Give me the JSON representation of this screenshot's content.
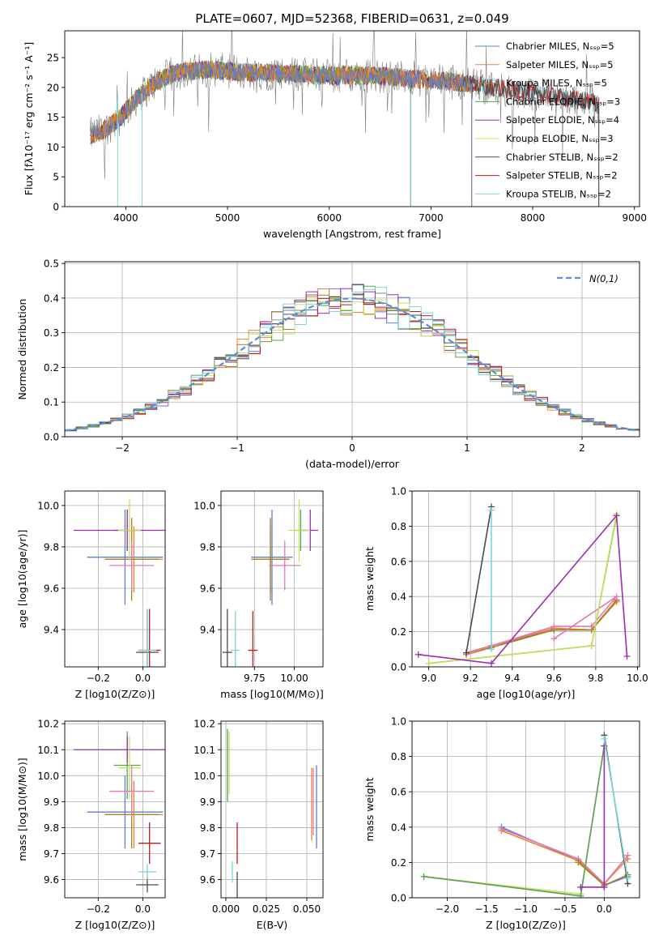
{
  "colors": [
    "#5b7fd6",
    "#e8823a",
    "#a8801c",
    "#5aa05a",
    "#9a2db0",
    "#c8e05a",
    "#4a4a4a",
    "#b81c1c",
    "#7fd6d6",
    "#e07ab0"
  ],
  "figure_title": "PLATE=0607, MJD=52368, FIBERID=0631, z=0.049",
  "chart_data": [
    {
      "id": "spectrum",
      "type": "line",
      "title": "PLATE=0607, MJD=52368, FIBERID=0631, z=0.049",
      "xlabel": "wavelength [Angstrom, rest frame]",
      "ylabel": "Flux [fλ10⁻¹⁷ erg cm⁻² s⁻¹ A⁻¹]",
      "xlim": [
        3400,
        9050
      ],
      "ylim": [
        0,
        29.5
      ],
      "xticks": [
        4000,
        5000,
        6000,
        7000,
        8000,
        9000
      ],
      "yticks": [
        0,
        5,
        10,
        15,
        20,
        25
      ],
      "grid": false,
      "legend_position": "top-right",
      "data_color": "#7f7f7f",
      "data_profile": {
        "x": [
          3650,
          3800,
          3950,
          4100,
          4300,
          4500,
          4800,
          5200,
          5600,
          6000,
          6400,
          6800,
          7200,
          7600,
          8000,
          8400,
          8600,
          8650
        ],
        "y": [
          12,
          13,
          15,
          18,
          21,
          22.5,
          23,
          22.5,
          22.3,
          22,
          22,
          21.5,
          21,
          20,
          19,
          18,
          17.5,
          17
        ]
      },
      "series": [
        {
          "name": "Chabrier MILES, N_SSP=5",
          "color": "#5b7fd6",
          "x_range": [
            3650,
            7400
          ]
        },
        {
          "name": "Salpeter MILES, N_SSP=5",
          "color": "#e8823a",
          "x_range": [
            3650,
            7400
          ]
        },
        {
          "name": "Kroupa MILES, N_SSP=5",
          "color": "#a8801c",
          "x_range": [
            3650,
            7400
          ]
        },
        {
          "name": "Chabrier ELODIE, N_SSP=3",
          "color": "#5aa05a",
          "x_range": [
            3900,
            6800
          ]
        },
        {
          "name": "Salpeter ELODIE, N_SSP=4",
          "color": "#9a2db0",
          "x_range": [
            3900,
            6800
          ]
        },
        {
          "name": "Kroupa ELODIE, N_SSP=3",
          "color": "#c8e05a",
          "x_range": [
            3900,
            6800
          ]
        },
        {
          "name": "Chabrier STELIB, N_SSP=2",
          "color": "#4a4a4a",
          "x_range": [
            3650,
            8650
          ]
        },
        {
          "name": "Salpeter STELIB, N_SSP=2",
          "color": "#b81c1c",
          "x_range": [
            3650,
            8650
          ]
        },
        {
          "name": "Kroupa STELIB, N_SSP=2",
          "color": "#7fd6d6",
          "x_range": [
            3650,
            8650
          ]
        }
      ]
    },
    {
      "id": "residuals",
      "type": "histogram",
      "xlabel": "(data-model)/error",
      "ylabel": "Normed distribution",
      "xlim": [
        -2.5,
        2.5
      ],
      "ylim": [
        0,
        0.505
      ],
      "xticks": [
        -2,
        -1,
        0,
        1,
        2
      ],
      "yticks": [
        0.0,
        0.1,
        0.2,
        0.3,
        0.4,
        0.5
      ],
      "grid": true,
      "legend_position": "top-right",
      "reference": {
        "name": "N(0,1)",
        "color": "#5b8fd9"
      },
      "bin_edges_start": -2.5,
      "bin_width": 0.1,
      "series_count": 9
    },
    {
      "id": "age-vs-z",
      "type": "errorbar",
      "xlabel": "Z [log10(Z/Z⊙)]",
      "ylabel": "age  [log10(age/yr)]",
      "xlim": [
        -0.35,
        0.1
      ],
      "ylim": [
        9.22,
        10.07
      ],
      "xticks": [
        -0.2,
        0.0
      ],
      "yticks": [
        9.4,
        9.6,
        9.8,
        10.0
      ],
      "grid": true,
      "points": [
        {
          "x": -0.08,
          "y": 9.75,
          "xerr": 0.17,
          "yerr": 0.23,
          "color": 0
        },
        {
          "x": -0.04,
          "y": 9.74,
          "xerr": 0.13,
          "yerr": 0.16,
          "color": 1
        },
        {
          "x": -0.05,
          "y": 9.74,
          "xerr": 0.12,
          "yerr": 0.2,
          "color": 2
        },
        {
          "x": -0.07,
          "y": 9.88,
          "xerr": 0.06,
          "yerr": 0.1,
          "color": 3
        },
        {
          "x": -0.07,
          "y": 9.88,
          "xerr": 0.24,
          "yerr": 0.1,
          "color": 4
        },
        {
          "x": -0.06,
          "y": 9.88,
          "xerr": 0.05,
          "yerr": 0.15,
          "color": 5
        },
        {
          "x": 0.02,
          "y": 9.29,
          "xerr": 0.05,
          "yerr": 0.21,
          "color": 6
        },
        {
          "x": 0.03,
          "y": 9.3,
          "xerr": 0.05,
          "yerr": 0.2,
          "color": 7
        },
        {
          "x": 0.02,
          "y": 9.3,
          "xerr": 0.04,
          "yerr": 0.2,
          "color": 8
        },
        {
          "x": -0.05,
          "y": 9.71,
          "xerr": 0.1,
          "yerr": 0.12,
          "color": 9
        }
      ]
    },
    {
      "id": "age-vs-mass",
      "type": "errorbar",
      "xlabel": "mass [log10(M/M⊙)]",
      "ylabel": "",
      "xlim": [
        9.54,
        10.18
      ],
      "ylim": [
        9.22,
        10.07
      ],
      "xticks": [
        9.75,
        10.0
      ],
      "xtick_labels": [
        "9.75",
        "10.00"
      ],
      "yticks": [
        9.4,
        9.6,
        9.8,
        10.0
      ],
      "grid": true,
      "points": [
        {
          "x": 9.86,
          "y": 9.75,
          "xerr": 0.13,
          "yerr": 0.23,
          "color": 0
        },
        {
          "x": 9.85,
          "y": 9.74,
          "xerr": 0.11,
          "yerr": 0.16,
          "color": 1
        },
        {
          "x": 9.85,
          "y": 9.74,
          "xerr": 0.12,
          "yerr": 0.2,
          "color": 2
        },
        {
          "x": 10.04,
          "y": 9.88,
          "xerr": 0.04,
          "yerr": 0.1,
          "color": 3
        },
        {
          "x": 10.1,
          "y": 9.88,
          "xerr": 0.05,
          "yerr": 0.1,
          "color": 4
        },
        {
          "x": 10.03,
          "y": 9.88,
          "xerr": 0.07,
          "yerr": 0.15,
          "color": 5
        },
        {
          "x": 9.58,
          "y": 9.29,
          "xerr": 0.03,
          "yerr": 0.21,
          "color": 6
        },
        {
          "x": 9.74,
          "y": 9.3,
          "xerr": 0.03,
          "yerr": 0.19,
          "color": 7
        },
        {
          "x": 9.63,
          "y": 9.3,
          "xerr": 0.03,
          "yerr": 0.19,
          "color": 8
        },
        {
          "x": 9.94,
          "y": 9.71,
          "xerr": 0.1,
          "yerr": 0.12,
          "color": 9
        }
      ]
    },
    {
      "id": "weight-vs-age",
      "type": "line",
      "xlabel": "age  [log10(age/yr)]",
      "ylabel": "mass weight",
      "xlim": [
        8.92,
        10.01
      ],
      "ylim": [
        0,
        1.0
      ],
      "xticks": [
        9.0,
        9.2,
        9.4,
        9.6,
        9.8,
        10.0
      ],
      "yticks": [
        0.0,
        0.2,
        0.4,
        0.6,
        0.8,
        1.0
      ],
      "grid": true,
      "series": [
        {
          "color": 0,
          "points": [
            [
              9.18,
              0.08
            ],
            [
              9.3,
              0.12
            ],
            [
              9.6,
              0.21
            ],
            [
              9.78,
              0.21
            ],
            [
              9.9,
              0.38
            ]
          ]
        },
        {
          "color": 1,
          "points": [
            [
              9.18,
              0.08
            ],
            [
              9.3,
              0.12
            ],
            [
              9.6,
              0.22
            ],
            [
              9.78,
              0.21
            ],
            [
              9.9,
              0.37
            ]
          ]
        },
        {
          "color": 2,
          "points": [
            [
              9.18,
              0.07
            ],
            [
              9.3,
              0.11
            ],
            [
              9.6,
              0.21
            ],
            [
              9.78,
              0.21
            ],
            [
              9.9,
              0.38
            ]
          ]
        },
        {
          "color": 9,
          "points": [
            [
              9.18,
              0.07
            ],
            [
              9.3,
              0.12
            ],
            [
              9.6,
              0.23
            ],
            [
              9.78,
              0.23
            ],
            [
              9.9,
              0.4
            ],
            [
              9.6,
              0.16
            ]
          ]
        },
        {
          "color": 3,
          "points": [
            [
              9.0,
              0.02
            ],
            [
              9.78,
              0.12
            ],
            [
              9.9,
              0.86
            ]
          ]
        },
        {
          "color": 5,
          "points": [
            [
              9.0,
              0.02
            ],
            [
              9.78,
              0.12
            ],
            [
              9.9,
              0.87
            ]
          ]
        },
        {
          "color": 4,
          "points": [
            [
              8.95,
              0.07
            ],
            [
              9.3,
              0.02
            ],
            [
              9.9,
              0.86
            ],
            [
              9.95,
              0.06
            ]
          ]
        },
        {
          "color": 6,
          "points": [
            [
              9.18,
              0.08
            ],
            [
              9.3,
              0.91
            ]
          ]
        },
        {
          "color": 8,
          "points": [
            [
              9.3,
              0.1
            ],
            [
              9.3,
              0.89
            ]
          ]
        }
      ]
    },
    {
      "id": "mass-vs-z",
      "type": "errorbar",
      "xlabel": "Z [log10(Z/Z⊙)]",
      "ylabel": "mass [log10(M/M⊙)]",
      "xlim": [
        -0.35,
        0.1
      ],
      "ylim": [
        9.53,
        10.21
      ],
      "xticks": [
        -0.2,
        0.0
      ],
      "yticks": [
        9.6,
        9.7,
        9.8,
        9.9,
        10.0,
        10.1,
        10.2
      ],
      "grid": true,
      "points": [
        {
          "x": -0.08,
          "y": 9.86,
          "xerr": 0.17,
          "yerr": 0.14,
          "color": 0
        },
        {
          "x": -0.04,
          "y": 9.85,
          "xerr": 0.13,
          "yerr": 0.13,
          "color": 1
        },
        {
          "x": -0.05,
          "y": 9.85,
          "xerr": 0.12,
          "yerr": 0.13,
          "color": 2
        },
        {
          "x": -0.07,
          "y": 10.04,
          "xerr": 0.06,
          "yerr": 0.13,
          "color": 3
        },
        {
          "x": -0.07,
          "y": 10.1,
          "xerr": 0.24,
          "yerr": 0.05,
          "color": 4
        },
        {
          "x": -0.06,
          "y": 10.03,
          "xerr": 0.05,
          "yerr": 0.12,
          "color": 5
        },
        {
          "x": 0.02,
          "y": 9.58,
          "xerr": 0.05,
          "yerr": 0.03,
          "color": 6
        },
        {
          "x": 0.03,
          "y": 9.74,
          "xerr": 0.05,
          "yerr": 0.08,
          "color": 7
        },
        {
          "x": 0.02,
          "y": 9.63,
          "xerr": 0.04,
          "yerr": 0.03,
          "color": 8
        },
        {
          "x": -0.05,
          "y": 9.94,
          "xerr": 0.1,
          "yerr": 0.1,
          "color": 9
        }
      ]
    },
    {
      "id": "mass-vs-ebv",
      "type": "errorbar",
      "xlabel": "E(B-V)",
      "ylabel": "",
      "xlim": [
        -0.003,
        0.06
      ],
      "ylim": [
        9.53,
        10.21
      ],
      "xticks": [
        0.0,
        0.025,
        0.05
      ],
      "xtick_labels": [
        "0.000",
        "0.025",
        "0.050"
      ],
      "yticks": [
        9.6,
        9.7,
        9.8,
        9.9,
        10.0,
        10.1,
        10.2
      ],
      "grid": true,
      "points": [
        {
          "x": 0.056,
          "y": 9.88,
          "yerr": 0.16,
          "color": 0
        },
        {
          "x": 0.053,
          "y": 9.89,
          "yerr": 0.14,
          "color": 1
        },
        {
          "x": 0.054,
          "y": 9.9,
          "yerr": 0.13,
          "color": 9
        },
        {
          "x": 0.001,
          "y": 10.04,
          "yerr": 0.14,
          "color": 3
        },
        {
          "x": 0.002,
          "y": 10.05,
          "yerr": 0.12,
          "color": 5
        },
        {
          "x": 0.007,
          "y": 9.58,
          "yerr": 0.05,
          "color": 6
        },
        {
          "x": 0.007,
          "y": 9.74,
          "yerr": 0.08,
          "color": 7
        },
        {
          "x": 0.004,
          "y": 9.63,
          "yerr": 0.04,
          "color": 8
        }
      ]
    },
    {
      "id": "weight-vs-z",
      "type": "line",
      "xlabel": "Z [log10(Z/Z⊙)]",
      "ylabel": "mass weight",
      "xlim": [
        -2.45,
        0.45
      ],
      "ylim": [
        0,
        1.0
      ],
      "xticks": [
        -2.0,
        -1.5,
        -1.0,
        -0.5,
        0.0
      ],
      "yticks": [
        0.0,
        0.2,
        0.4,
        0.6,
        0.8,
        1.0
      ],
      "grid": true,
      "series": [
        {
          "color": 0,
          "points": [
            [
              -1.31,
              0.4
            ],
            [
              -0.33,
              0.21
            ],
            [
              0.0,
              0.07
            ],
            [
              0.3,
              0.12
            ]
          ]
        },
        {
          "color": 1,
          "points": [
            [
              -1.31,
              0.38
            ],
            [
              -0.33,
              0.21
            ],
            [
              0.0,
              0.08
            ],
            [
              0.3,
              0.22
            ]
          ]
        },
        {
          "color": 9,
          "points": [
            [
              -1.31,
              0.39
            ],
            [
              -0.33,
              0.22
            ],
            [
              0.0,
              0.08
            ],
            [
              0.3,
              0.24
            ]
          ]
        },
        {
          "color": 2,
          "points": [
            [
              -0.33,
              0.2
            ],
            [
              0.0,
              0.07
            ],
            [
              0.3,
              0.13
            ]
          ]
        },
        {
          "color": 5,
          "points": [
            [
              -2.3,
              0.12
            ],
            [
              -0.3,
              0.02
            ],
            [
              0.0,
              0.86
            ]
          ]
        },
        {
          "color": 3,
          "points": [
            [
              -2.3,
              0.12
            ],
            [
              -0.3,
              0.01
            ],
            [
              0.0,
              0.86
            ]
          ]
        },
        {
          "color": 4,
          "points": [
            [
              -0.3,
              0.06
            ],
            [
              0.0,
              0.06
            ],
            [
              0.0,
              0.86
            ]
          ]
        },
        {
          "color": 6,
          "points": [
            [
              0.0,
              0.92
            ],
            [
              0.3,
              0.08
            ]
          ]
        },
        {
          "color": 8,
          "points": [
            [
              0.0,
              0.9
            ],
            [
              0.3,
              0.11
            ]
          ]
        }
      ]
    }
  ]
}
